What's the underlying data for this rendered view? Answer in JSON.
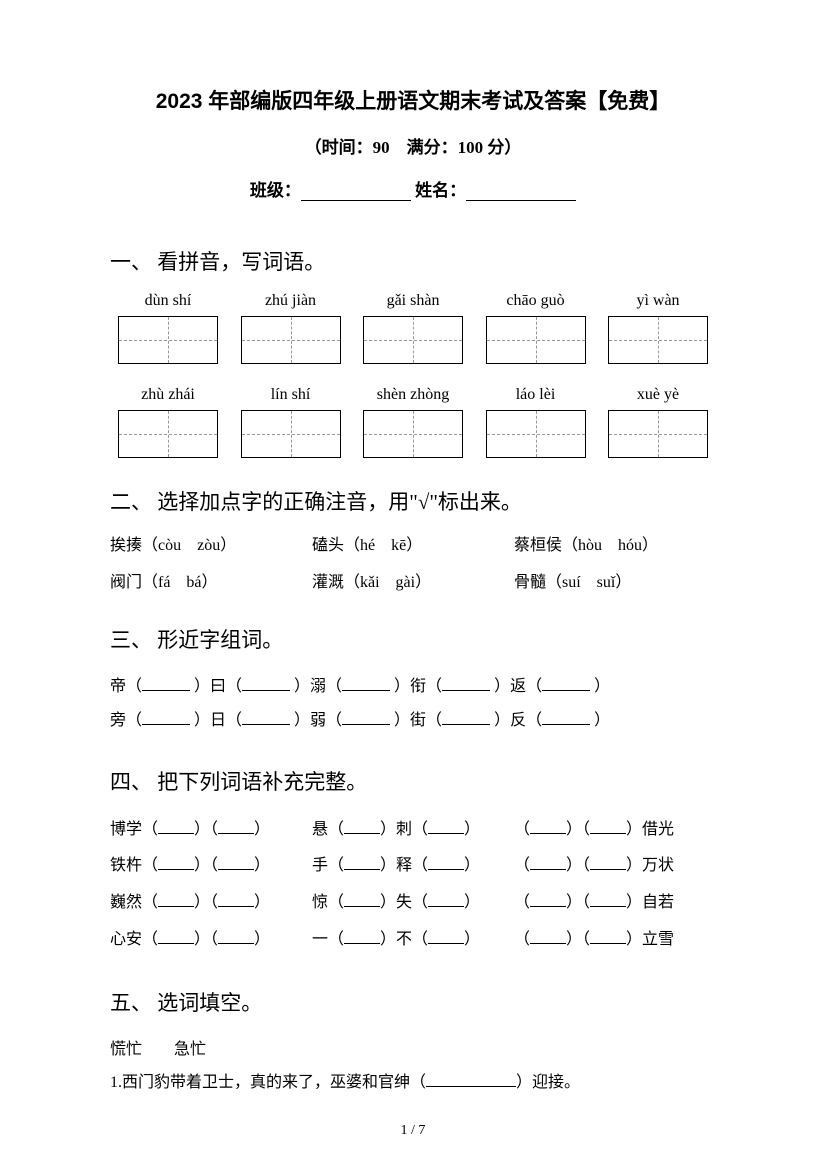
{
  "title": "2023 年部编版四年级上册语文期末考试及答案【免费】",
  "subtitle": "（时间：90　满分：100 分）",
  "classLabel": "班级：",
  "nameLabel": "姓名：",
  "section1": {
    "heading": "一、 看拼音，写词语。",
    "row1": [
      "dùn shí",
      "zhú jiàn",
      "gǎi shàn",
      "chāo guò",
      "yì wàn"
    ],
    "row2": [
      "zhù zhái",
      "lín shí",
      "shèn zhòng",
      "láo lèi",
      "xuè yè"
    ]
  },
  "section2": {
    "heading": "二、 选择加点字的正确注音，用\"√\"标出来。",
    "items": [
      {
        "a": "挨揍（còu　zòu）",
        "b": "磕头（hé　kē）",
        "c": "蔡桓侯（hòu　hóu）"
      },
      {
        "a": "阀门（fá　bá）",
        "b": "灌溉（kǎi　gài）",
        "c": "骨髓（suí　suǐ）"
      }
    ]
  },
  "section3": {
    "heading": "三、 形近字组词。",
    "line1": [
      "帝（",
      "）曰（",
      "）溺（",
      "）衔（",
      "）返（",
      "）"
    ],
    "line2": [
      "旁（",
      "）日（",
      "）弱（",
      "）街（",
      "）反（",
      "）"
    ]
  },
  "section4": {
    "heading": "四、 把下列词语补充完整。",
    "rows": [
      {
        "a1": "博学（",
        "a2": "）（",
        "a3": "）",
        "b1": "悬（",
        "b2": "）刺（",
        "b3": "）",
        "c1": "（",
        "c2": "）（",
        "c3": "）借光"
      },
      {
        "a1": "铁杵（",
        "a2": "）（",
        "a3": "）",
        "b1": "手（",
        "b2": "）释（",
        "b3": "）",
        "c1": "（",
        "c2": "）（",
        "c3": "）万状"
      },
      {
        "a1": "巍然（",
        "a2": "）（",
        "a3": "）",
        "b1": "惊（",
        "b2": "）失（",
        "b3": "）",
        "c1": "（",
        "c2": "）（",
        "c3": "）自若"
      },
      {
        "a1": "心安（",
        "a2": "）（",
        "a3": "）",
        "b1": "一（",
        "b2": "）不（",
        "b3": "）",
        "c1": "（",
        "c2": "）（",
        "c3": "）立雪"
      }
    ]
  },
  "section5": {
    "heading": "五、 选词填空。",
    "choices": "慌忙　　急忙",
    "q1": "1.西门豹带着卫士，真的来了，巫婆和官绅（",
    "q1end": "）迎接。"
  },
  "footer": "1 / 7"
}
